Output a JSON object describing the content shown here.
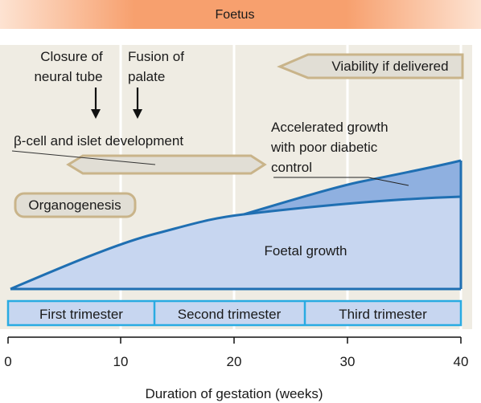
{
  "header": {
    "label": "Foetus"
  },
  "annotations": {
    "closure": [
      "Closure of",
      "neural tube"
    ],
    "fusion": [
      "Fusion of",
      "palate"
    ],
    "viability": "Viability if delivered",
    "beta_cell": "β-cell and islet development",
    "accelerated": [
      "Accelerated growth",
      "with poor diabetic",
      "control"
    ],
    "organogenesis": "Organogenesis",
    "foetal_growth": "Foetal growth"
  },
  "trimesters": [
    "First trimester",
    "Second trimester",
    "Third trimester"
  ],
  "axis": {
    "label": "Duration of gestation (weeks)",
    "ticks": [
      "0",
      "10",
      "20",
      "30",
      "40"
    ]
  },
  "colors": {
    "header_grad_center": "#f7a06e",
    "header_grad_edge": "#fde3d2",
    "panel_bg": "#efece3",
    "growth_fill": "#c7d6f0",
    "accel_fill": "#8fb0e0",
    "curve_stroke": "#1f6fb2",
    "trimester_fill": "#c7d6f0",
    "trimester_border": "#29abe2",
    "hex_fill": "#e1ded5",
    "hex_stroke": "#c9b48a"
  }
}
